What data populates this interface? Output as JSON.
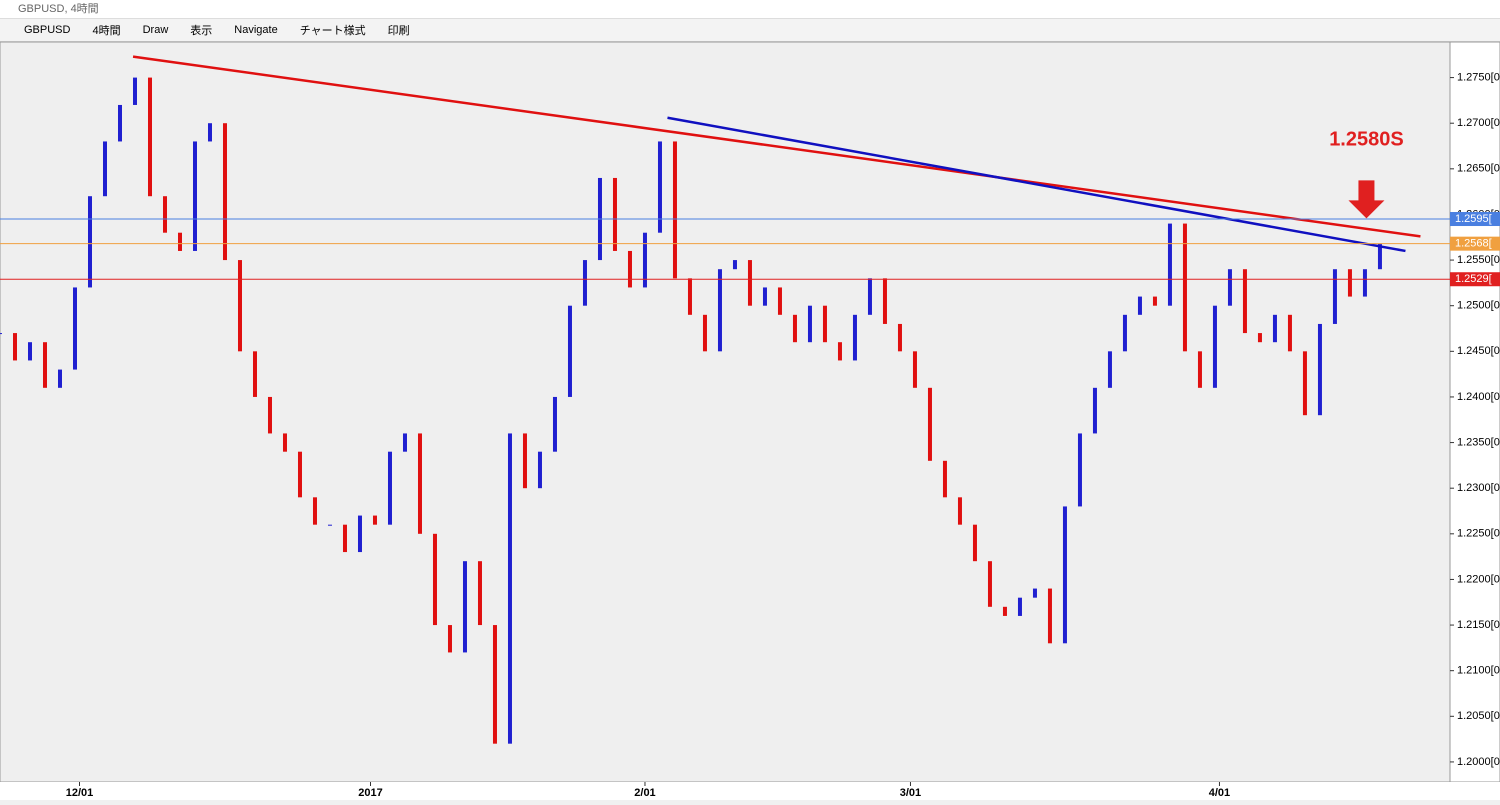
{
  "window": {
    "title": "GBPUSD, 4時間"
  },
  "toolbar": {
    "items": [
      "GBPUSD",
      "4時間",
      "Draw",
      "表示",
      "Navigate",
      "チャート様式",
      "印刷"
    ]
  },
  "chart_data": {
    "type": "candlestick",
    "series": [
      {
        "name": "GBPUSD",
        "up_color": "#2020d0",
        "down_color": "#e01010",
        "values": [
          1.247,
          1.244,
          1.246,
          1.241,
          1.243,
          1.252,
          1.262,
          1.268,
          1.272,
          1.275,
          1.262,
          1.258,
          1.256,
          1.268,
          1.27,
          1.255,
          1.245,
          1.24,
          1.236,
          1.234,
          1.229,
          1.226,
          1.226,
          1.223,
          1.227,
          1.226,
          1.234,
          1.236,
          1.225,
          1.215,
          1.212,
          1.222,
          1.215,
          1.202,
          1.236,
          1.23,
          1.234,
          1.24,
          1.25,
          1.255,
          1.264,
          1.256,
          1.252,
          1.258,
          1.268,
          1.253,
          1.249,
          1.245,
          1.254,
          1.255,
          1.25,
          1.252,
          1.249,
          1.246,
          1.25,
          1.246,
          1.244,
          1.249,
          1.253,
          1.248,
          1.245,
          1.241,
          1.233,
          1.229,
          1.226,
          1.222,
          1.217,
          1.216,
          1.218,
          1.219,
          1.213,
          1.228,
          1.236,
          1.241,
          1.245,
          1.249,
          1.251,
          1.25,
          1.259,
          1.245,
          1.241,
          1.25,
          1.254,
          1.247,
          1.246,
          1.249,
          1.245,
          1.238,
          1.248,
          1.254,
          1.251,
          1.254,
          1.2568
        ]
      }
    ],
    "xlim": [
      0,
      96.67
    ],
    "xticks": [
      {
        "value": 5.3,
        "label": "12/01"
      },
      {
        "value": 24.7,
        "label": "2017"
      },
      {
        "value": 43,
        "label": "2/01"
      },
      {
        "value": 60.7,
        "label": "3/01"
      },
      {
        "value": 81.3,
        "label": "4/01"
      }
    ],
    "ylim": [
      1.1978,
      1.2789
    ],
    "yticks": [
      {
        "value": 1.2,
        "label": "1.2000[0"
      },
      {
        "value": 1.205,
        "label": "1.2050[0"
      },
      {
        "value": 1.21,
        "label": "1.2100[0"
      },
      {
        "value": 1.215,
        "label": "1.2150[0"
      },
      {
        "value": 1.22,
        "label": "1.2200[0"
      },
      {
        "value": 1.225,
        "label": "1.2250[0"
      },
      {
        "value": 1.23,
        "label": "1.2300[0"
      },
      {
        "value": 1.235,
        "label": "1.2350[0"
      },
      {
        "value": 1.24,
        "label": "1.2400[0"
      },
      {
        "value": 1.245,
        "label": "1.2450[0"
      },
      {
        "value": 1.25,
        "label": "1.2500[0"
      },
      {
        "value": 1.255,
        "label": "1.2550[0"
      },
      {
        "value": 1.26,
        "label": "1.2600[0"
      },
      {
        "value": 1.265,
        "label": "1.2650[0"
      },
      {
        "value": 1.27,
        "label": "1.2700[0"
      },
      {
        "value": 1.275,
        "label": "1.2750[0"
      }
    ],
    "price_lines": [
      {
        "value": 1.2595,
        "label": "1.2595[",
        "color": "#4a7fe0"
      },
      {
        "value": 1.2568,
        "label": "1.2568[",
        "color": "#f0a040"
      },
      {
        "value": 1.2529,
        "label": "1.2529[",
        "color": "#e02020"
      }
    ],
    "trend_lines": [
      {
        "color": "#e01010",
        "x": [
          8.87,
          94.7
        ],
        "y": [
          1.2773,
          1.2576
        ]
      },
      {
        "color": "#1010c0",
        "x": [
          44.5,
          93.7
        ],
        "y": [
          1.2706,
          1.256
        ]
      }
    ],
    "annotation": {
      "text": "1.2580S",
      "x": 91.1,
      "y": 1.2588,
      "color": "#e02020"
    }
  }
}
